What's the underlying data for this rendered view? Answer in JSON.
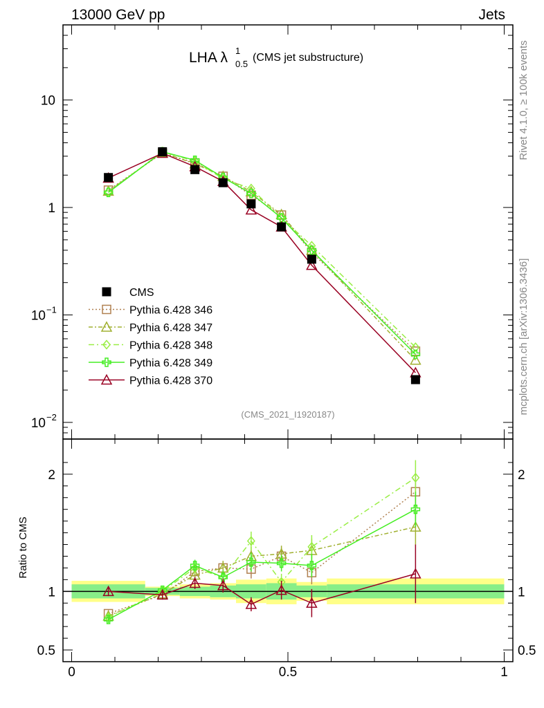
{
  "header": {
    "left": "13000 GeV pp",
    "right": "Jets"
  },
  "side_labels": {
    "rivet": "Rivet 4.1.0, ≥ 100k events",
    "mcplots": "mcplots.cern.ch [arXiv:1306.3436]"
  },
  "colors": {
    "CMS": "#000000",
    "p346": "#b08050",
    "p347": "#a0b030",
    "p348": "#99ee44",
    "p349": "#44ee22",
    "p370": "#990022",
    "band_inner": "#88ee88",
    "band_outer": "#ffff88"
  },
  "chart_data": {
    "type": "line",
    "title": {
      "main": "LHA λ",
      "sup": "1",
      "sub": "0.5",
      "paren": "(CMS jet substructure)"
    },
    "watermark": "(CMS_2021_I1920187)",
    "main_panel": {
      "yscale": "log",
      "ylim": [
        0.007,
        50
      ],
      "xlim": [
        -0.02,
        1.02
      ],
      "yticks": [
        {
          "value": 10,
          "label": "10"
        },
        {
          "value": 1,
          "label": "1"
        },
        {
          "value": 0.1,
          "label": "10",
          "exp": "−1"
        },
        {
          "value": 0.01,
          "label": "10",
          "exp": "−2"
        }
      ]
    },
    "ratio_panel": {
      "ylabel": "Ratio to CMS",
      "ylim": [
        0.4,
        2.3
      ],
      "yticks": [
        {
          "value": 2,
          "label": "2"
        },
        {
          "value": 1,
          "label": "1"
        },
        {
          "value": 0.5,
          "label": "0.5"
        }
      ]
    },
    "xticks": [
      {
        "value": 0,
        "label": "0"
      },
      {
        "value": 0.5,
        "label": "0.5"
      },
      {
        "value": 1,
        "label": "1"
      }
    ],
    "bin_edges": [
      0,
      0.17,
      0.25,
      0.32,
      0.38,
      0.45,
      0.52,
      0.59,
      1.0
    ],
    "x": [
      0.085,
      0.21,
      0.285,
      0.35,
      0.415,
      0.485,
      0.555,
      0.795
    ],
    "data": {
      "name": "CMS",
      "values": [
        1.9,
        3.3,
        2.25,
        1.7,
        1.08,
        0.66,
        0.33,
        0.025
      ],
      "band_inner": [
        0.06,
        0.03,
        0.04,
        0.05,
        0.06,
        0.07,
        0.05,
        0.06
      ],
      "band_outer": [
        0.09,
        0.04,
        0.06,
        0.07,
        0.1,
        0.11,
        0.08,
        0.11
      ]
    },
    "series": [
      {
        "name": "Pythia 6.428 346",
        "key": "p346",
        "marker": "square",
        "dash": "2,3",
        "values": [
          1.45,
          3.2,
          2.6,
          1.95,
          1.3,
          0.85,
          0.38,
          0.046
        ],
        "ratio": [
          0.81,
          0.97,
          1.17,
          1.2,
          1.19,
          1.3,
          1.16,
          1.85
        ],
        "ratio_err": [
          0.03,
          0.03,
          0.05,
          0.06,
          0.08,
          0.07,
          0.1,
          0.15
        ]
      },
      {
        "name": "Pythia 6.428 347",
        "key": "p347",
        "marker": "triangle",
        "dash": "6,3,2,3",
        "values": [
          1.42,
          3.25,
          2.55,
          1.95,
          1.4,
          0.86,
          0.4,
          0.038
        ],
        "ratio": [
          0.79,
          0.98,
          1.14,
          1.2,
          1.3,
          1.32,
          1.35,
          1.55
        ],
        "ratio_err": [
          0.03,
          0.03,
          0.05,
          0.06,
          0.08,
          0.07,
          0.1,
          0.15
        ]
      },
      {
        "name": "Pythia 6.428 348",
        "key": "p348",
        "marker": "diamond",
        "dash": "8,4,2,4",
        "values": [
          1.4,
          3.3,
          2.7,
          1.85,
          1.5,
          0.8,
          0.44,
          0.05
        ],
        "ratio": [
          0.78,
          1.0,
          1.2,
          1.12,
          1.43,
          1.08,
          1.38,
          1.97
        ],
        "ratio_err": [
          0.03,
          0.03,
          0.05,
          0.06,
          0.08,
          0.07,
          0.1,
          0.15
        ]
      },
      {
        "name": "Pythia 6.428 349",
        "key": "p349",
        "marker": "cross",
        "dash": "",
        "values": [
          1.38,
          3.3,
          2.75,
          1.9,
          1.35,
          0.8,
          0.4,
          0.043
        ],
        "ratio": [
          0.76,
          1.01,
          1.22,
          1.12,
          1.25,
          1.24,
          1.22,
          1.7
        ],
        "ratio_err": [
          0.03,
          0.03,
          0.05,
          0.06,
          0.08,
          0.07,
          0.1,
          0.15
        ]
      },
      {
        "name": "Pythia 6.428 370",
        "key": "p370",
        "marker": "triangle",
        "dash": "",
        "values": [
          1.88,
          3.2,
          2.4,
          1.75,
          0.95,
          0.66,
          0.29,
          0.029
        ],
        "ratio": [
          1.0,
          0.97,
          1.07,
          1.05,
          0.89,
          1.01,
          0.9,
          1.15
        ],
        "ratio_err": [
          0.04,
          0.04,
          0.05,
          0.06,
          0.06,
          0.08,
          0.12,
          0.25
        ]
      }
    ]
  }
}
